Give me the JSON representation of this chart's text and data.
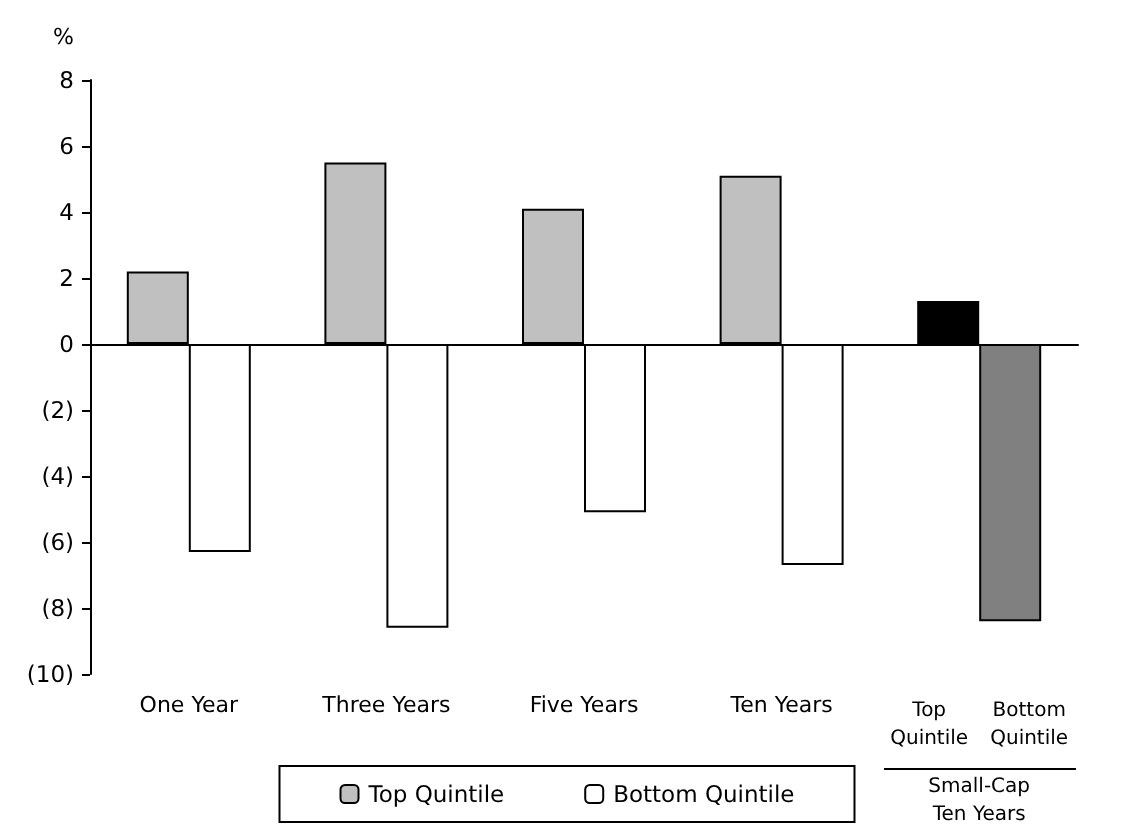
{
  "chart_data": {
    "type": "bar",
    "ylabel": "%",
    "categories": [
      "One Year",
      "Three Years",
      "Five Years",
      "Ten Years",
      null
    ],
    "series": [
      {
        "name": "Top Quintile",
        "color": "#c0c0c0",
        "colors": [
          "#c0c0c0",
          "#c0c0c0",
          "#c0c0c0",
          "#c0c0c0",
          "#000000"
        ],
        "values": [
          2.2,
          5.5,
          4.1,
          5.1,
          1.3
        ]
      },
      {
        "name": "Bottom Quintile",
        "color": "#ffffff",
        "colors": [
          "#ffffff",
          "#ffffff",
          "#ffffff",
          "#ffffff",
          "#808080"
        ],
        "values": [
          -6.3,
          -8.6,
          -5.1,
          -6.7,
          -8.4
        ]
      }
    ],
    "ylim": [
      -10,
      8
    ],
    "yticks": [
      {
        "value": -10,
        "label": "(10)"
      },
      {
        "value": -8,
        "label": "(8)"
      },
      {
        "value": -6,
        "label": "(6)"
      },
      {
        "value": -4,
        "label": "(4)"
      },
      {
        "value": -2,
        "label": "(2)"
      },
      0,
      2,
      4,
      6,
      8
    ],
    "annotations": [
      "Top Quintile",
      "Bottom Quintile",
      "Small-Cap Ten Years"
    ],
    "legend": "bottom"
  }
}
